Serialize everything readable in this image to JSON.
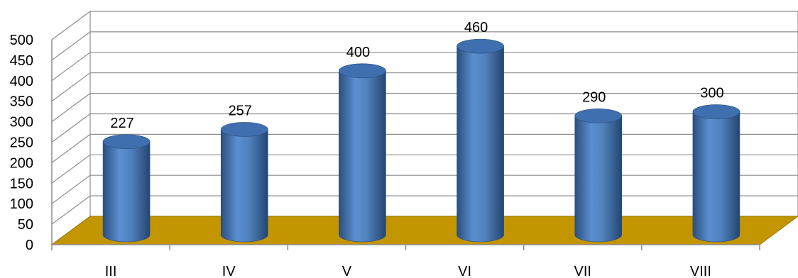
{
  "chart_data": {
    "type": "bar",
    "subtype": "3d-cylinder",
    "categories": [
      "III",
      "IV",
      "V",
      "VI",
      "VII",
      "VIII"
    ],
    "values": [
      227,
      257,
      400,
      460,
      290,
      300
    ],
    "data_labels": [
      "227",
      "257",
      "400",
      "460",
      "290",
      "300"
    ],
    "y_ticks": [
      "0",
      "50",
      "100",
      "150",
      "200",
      "250",
      "300",
      "350",
      "400",
      "450",
      "500"
    ],
    "ylim": [
      0,
      500
    ],
    "title": "",
    "xlabel": "",
    "ylabel": "",
    "grid": true,
    "legend": "none",
    "colors": {
      "bar": "#4f81bd",
      "bar_dark": "#2b4f7e",
      "bar_top": "#3f6fae",
      "floor": "#c39500",
      "grid": "#8c8c8c"
    }
  }
}
